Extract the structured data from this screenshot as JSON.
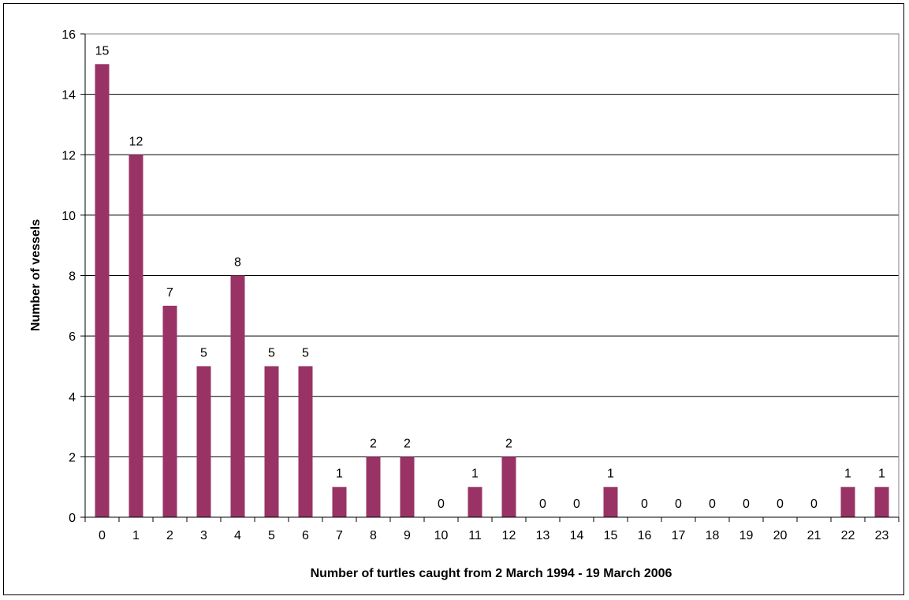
{
  "chart_data": {
    "type": "bar",
    "title": "",
    "xlabel": "Number of turtles caught from 2 March 1994 - 19 March 2006",
    "ylabel": "Number of vessels",
    "categories": [
      "0",
      "1",
      "2",
      "3",
      "4",
      "5",
      "6",
      "7",
      "8",
      "9",
      "10",
      "11",
      "12",
      "13",
      "14",
      "15",
      "16",
      "17",
      "18",
      "19",
      "20",
      "21",
      "22",
      "23"
    ],
    "values": [
      15,
      12,
      7,
      5,
      8,
      5,
      5,
      1,
      2,
      2,
      0,
      1,
      2,
      0,
      0,
      1,
      0,
      0,
      0,
      0,
      0,
      0,
      1,
      1
    ],
    "data_labels": [
      "15",
      "12",
      "7",
      "5",
      "8",
      "5",
      "5",
      "1",
      "2",
      "2",
      "0",
      "1",
      "2",
      "0",
      "0",
      "1",
      "0",
      "0",
      "0",
      "0",
      "0",
      "0",
      "1",
      "1"
    ],
    "ylim": [
      0,
      16
    ],
    "yticks": [
      "0",
      "2",
      "4",
      "6",
      "8",
      "10",
      "12",
      "14",
      "16"
    ],
    "grid": true,
    "bar_color": "#993366"
  }
}
